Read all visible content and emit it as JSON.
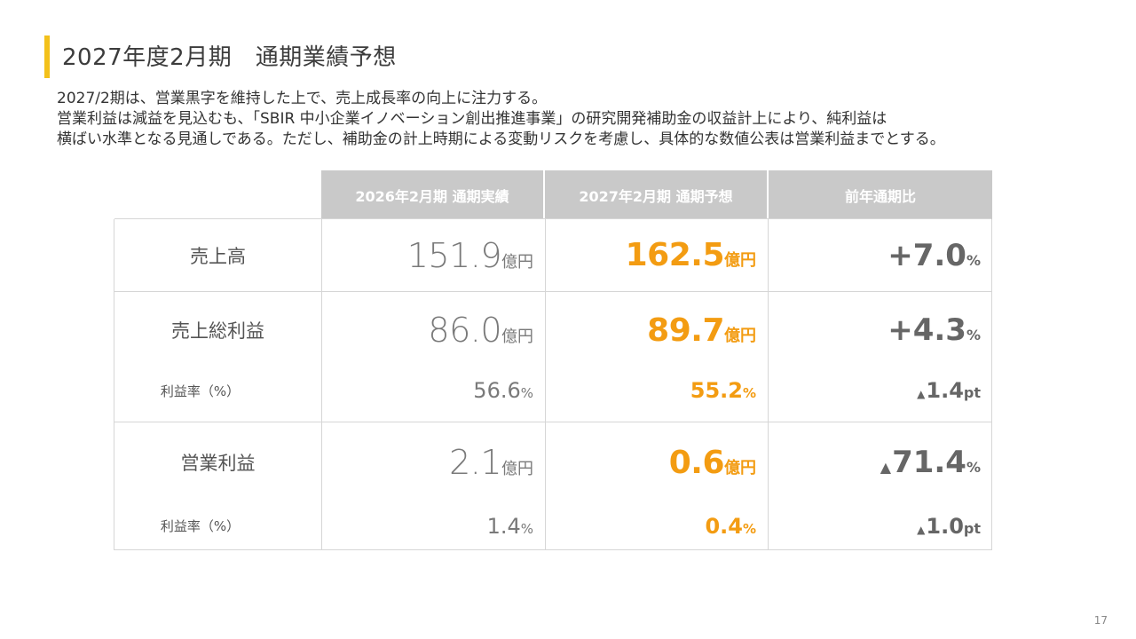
{
  "title": "2027年度2月期　通期業績予想",
  "description": [
    "2027/2期は、営業黒字を維持した上で、売上成長率の向上に注力する。",
    "営業利益は減益を見込むも、「SBIR 中小企業イノベーション創出推進事業」の研究開発補助金の収益計上により、純利益は",
    "横ばい水準となる見通しである。ただし、補助金の計上時期による変動リスクを考慮し、具体的な数値公表は営業利益までとする。"
  ],
  "table": {
    "headers": [
      "2026年2月期 通期実績",
      "2027年2月期 通期予想",
      "前年通期比"
    ],
    "sales": {
      "label": "売上高",
      "actual": "151.9",
      "actual_unit": "億円",
      "forecast": "162.5",
      "forecast_unit": "億円",
      "change": "+7.0",
      "change_unit": "%"
    },
    "gross_profit": {
      "label": "売上総利益",
      "actual": "86.0",
      "actual_unit": "億円",
      "forecast": "89.7",
      "forecast_unit": "億円",
      "change": "+4.3",
      "change_unit": "%",
      "margin_label": "利益率（%）",
      "margin_actual": "56.6",
      "margin_actual_unit": "%",
      "margin_forecast": "55.2",
      "margin_forecast_unit": "%",
      "margin_change_symbol": "▲",
      "margin_change": "1.4",
      "margin_change_unit": "pt"
    },
    "operating_profit": {
      "label": "営業利益",
      "actual": "2.1",
      "actual_unit": "億円",
      "forecast": "0.6",
      "forecast_unit": "億円",
      "change_symbol": "▲",
      "change": "71.4",
      "change_unit": "%",
      "margin_label": "利益率（%）",
      "margin_actual": "1.4",
      "margin_actual_unit": "%",
      "margin_forecast": "0.4",
      "margin_forecast_unit": "%",
      "margin_change_symbol": "▲",
      "margin_change": "1.0",
      "margin_change_unit": "pt"
    }
  },
  "page_number": "17",
  "colors": {
    "accent": "#f3c11b",
    "forecast": "#f39c12",
    "header_bg": "#c9c9c9"
  }
}
